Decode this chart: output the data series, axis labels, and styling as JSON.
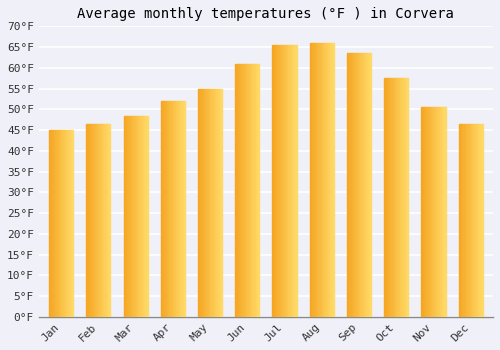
{
  "title": "Average monthly temperatures (°F ) in Corvera",
  "months": [
    "Jan",
    "Feb",
    "Mar",
    "Apr",
    "May",
    "Jun",
    "Jul",
    "Aug",
    "Sep",
    "Oct",
    "Nov",
    "Dec"
  ],
  "values": [
    45,
    46.5,
    48.5,
    52,
    55,
    61,
    65.5,
    66,
    63.5,
    57.5,
    50.5,
    46.5
  ],
  "bar_color_left": "#F5A623",
  "bar_color_right": "#FFD966",
  "ylim": [
    0,
    70
  ],
  "ytick_step": 5,
  "background_color": "#F0F0F8",
  "plot_bg_color": "#F0F0F8",
  "grid_color": "#FFFFFF",
  "title_fontsize": 10,
  "tick_fontsize": 8,
  "font_family": "monospace"
}
